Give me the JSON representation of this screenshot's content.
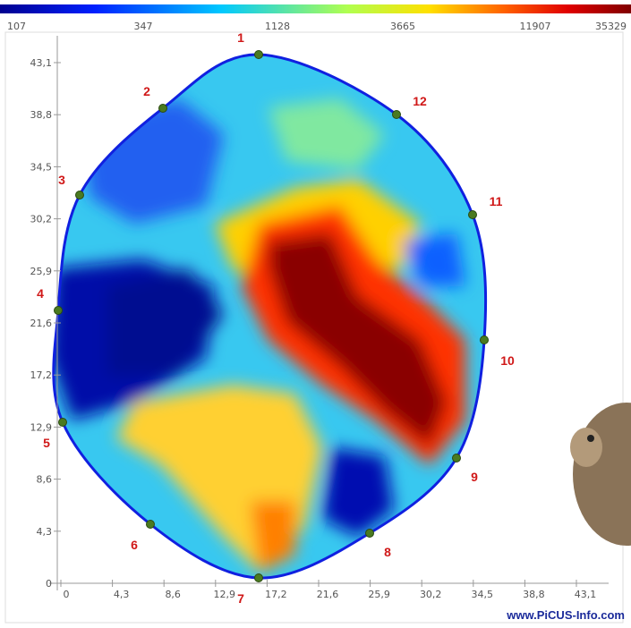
{
  "colorbar": {
    "labels": [
      "107",
      "347",
      "1128",
      "3665",
      "11907",
      "35329"
    ]
  },
  "axes": {
    "x_ticks": [
      "0",
      "4,3",
      "8,6",
      "12,9",
      "17,2",
      "21,6",
      "25,9",
      "30,2",
      "34,5",
      "38,8",
      "43,1"
    ],
    "y_ticks": [
      "0",
      "4,3",
      "8,6",
      "12,9",
      "17,2",
      "21,6",
      "25,9",
      "30,2",
      "34,5",
      "38,8",
      "43,1"
    ]
  },
  "sensors": [
    "1",
    "2",
    "3",
    "4",
    "5",
    "6",
    "7",
    "8",
    "9",
    "10",
    "11",
    "12"
  ],
  "footer": "www.PiCUS-Info.com"
}
